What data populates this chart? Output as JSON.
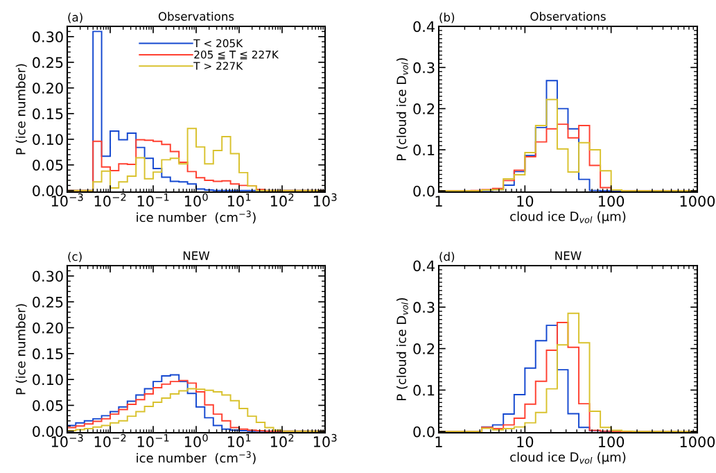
{
  "chart_data": [
    {
      "type": "histogram",
      "title": "Observations",
      "annotations": [
        "(a)"
      ],
      "xlabel": "ice number  (cm$^{−3}$)",
      "ylabel": "P (ice number)",
      "log": "x",
      "legend": "top",
      "bins": [
        0.001,
        0.00158,
        0.00251,
        0.00398,
        0.00631,
        0.01,
        0.0158,
        0.0251,
        0.0398,
        0.0631,
        0.1,
        0.158,
        0.251,
        0.398,
        0.631,
        1,
        1.58,
        2.51,
        3.98,
        6.31,
        10,
        15.8,
        25.1,
        39.8,
        63.1,
        100,
        158,
        251,
        398,
        631,
        1000
      ],
      "xlim": [
        0.001,
        1000
      ],
      "ylim": [
        -0.003,
        0.32
      ],
      "xticks": [
        {
          "value": 0.001,
          "label": "10$^{−3}$"
        },
        {
          "value": 0.01,
          "label": "10$^{−2}$"
        },
        {
          "value": 0.1,
          "label": "10$^{−1}$"
        },
        {
          "value": 1,
          "label": "10$^{0}$"
        },
        {
          "value": 10,
          "label": "10$^{1}$"
        },
        {
          "value": 100,
          "label": "10$^{2}$"
        },
        {
          "value": 1000,
          "label": "10$^{3}$"
        }
      ],
      "yticks": [
        {
          "value": 0,
          "label": "0.00"
        },
        0.05,
        {
          "value": 0.1,
          "label": "0.10"
        },
        0.15,
        {
          "value": 0.2,
          "label": "0.20"
        },
        0.25,
        {
          "value": 0.3,
          "label": "0.30"
        }
      ],
      "series": [
        {
          "name": "T < 205K",
          "color": "#1448d0",
          "values": [
            0,
            0,
            0,
            0.31,
            0.067,
            0.116,
            0.099,
            0.112,
            0.084,
            0.063,
            0.043,
            0.026,
            0.018,
            0.017,
            0.013,
            0.003,
            0.001,
            0,
            0,
            0,
            0,
            0,
            0,
            0,
            0,
            0,
            0,
            0,
            0,
            0
          ]
        },
        {
          "name": "205 ≦ T ≦ 227K",
          "color": "#ff4030",
          "values": [
            0,
            0,
            0,
            0.096,
            0.046,
            0.039,
            0.052,
            0.051,
            0.099,
            0.098,
            0.096,
            0.09,
            0.076,
            0.055,
            0.037,
            0.025,
            0.02,
            0.018,
            0.019,
            0.013,
            0.01,
            0.009,
            0.002,
            0,
            0,
            0,
            0,
            0,
            0,
            0
          ]
        },
        {
          "name": "T > 227K",
          "color": "#d9c22e",
          "values": [
            0,
            0,
            0,
            0.017,
            0.038,
            0.005,
            0.017,
            0.028,
            0.064,
            0.023,
            0.036,
            0.06,
            0.063,
            0.052,
            0.121,
            0.085,
            0.052,
            0.078,
            0.105,
            0.072,
            0.035,
            0.009,
            0,
            0,
            0,
            0,
            0,
            0,
            0,
            0
          ]
        }
      ]
    },
    {
      "type": "histogram",
      "title": "Observations",
      "annotations": [
        "(b)"
      ],
      "xlabel": "cloud ice D$_{vol}$ (μm)",
      "ylabel": "P (cloud ice D$_{vol}$)",
      "log": "x",
      "bins": [
        1,
        1.33,
        1.78,
        2.37,
        3.16,
        4.22,
        5.62,
        7.5,
        10,
        13.3,
        17.8,
        23.7,
        31.6,
        42.2,
        56.2,
        75,
        100,
        133,
        178,
        237,
        316,
        422,
        562,
        750,
        1000
      ],
      "xlim": [
        1,
        1000
      ],
      "ylim": [
        -0.003,
        0.4
      ],
      "xticks": [
        1,
        10,
        100,
        1000
      ],
      "yticks": [
        {
          "value": 0,
          "label": "0.0"
        },
        0.1,
        0.2,
        0.3,
        0.4
      ],
      "series": [
        {
          "color": "#1448d0",
          "values": [
            0,
            0,
            0,
            0,
            0.001,
            0.003,
            0.014,
            0.047,
            0.086,
            0.154,
            0.268,
            0.2,
            0.151,
            0.028,
            0.001,
            0,
            0,
            0,
            0,
            0,
            0,
            0,
            0,
            0
          ]
        },
        {
          "color": "#ff4030",
          "values": [
            0,
            0,
            0,
            0.001,
            0.003,
            0.006,
            0.025,
            0.05,
            0.083,
            0.119,
            0.151,
            0.162,
            0.129,
            0.159,
            0.062,
            0.008,
            0.002,
            0,
            0,
            0,
            0,
            0,
            0,
            0
          ]
        },
        {
          "color": "#d9c22e",
          "values": [
            0,
            0,
            0,
            0,
            0.002,
            0.003,
            0.029,
            0.039,
            0.093,
            0.159,
            0.222,
            0.102,
            0.046,
            0.117,
            0.1,
            0.049,
            0.002,
            0,
            0,
            0,
            0,
            0,
            0,
            0
          ]
        }
      ]
    },
    {
      "type": "histogram",
      "title": "NEW",
      "annotations": [
        "(c)"
      ],
      "xlabel": "ice number  (cm$^{−3}$)",
      "ylabel": "P (ice number)",
      "log": "x",
      "bins": [
        0.001,
        0.00158,
        0.00251,
        0.00398,
        0.00631,
        0.01,
        0.0158,
        0.0251,
        0.0398,
        0.0631,
        0.1,
        0.158,
        0.251,
        0.398,
        0.631,
        1,
        1.58,
        2.51,
        3.98,
        6.31,
        10,
        15.8,
        25.1,
        39.8,
        63.1,
        100,
        158,
        251,
        398,
        631,
        1000
      ],
      "xlim": [
        0.001,
        1000
      ],
      "ylim": [
        -0.003,
        0.32
      ],
      "xticks": [
        {
          "value": 0.001,
          "label": "10$^{−3}$"
        },
        {
          "value": 0.01,
          "label": "10$^{−2}$"
        },
        {
          "value": 0.1,
          "label": "10$^{−1}$"
        },
        {
          "value": 1,
          "label": "10$^{0}$"
        },
        {
          "value": 10,
          "label": "10$^{1}$"
        },
        {
          "value": 100,
          "label": "10$^{2}$"
        },
        {
          "value": 1000,
          "label": "10$^{3}$"
        }
      ],
      "yticks": [
        {
          "value": 0,
          "label": "0.00"
        },
        0.05,
        {
          "value": 0.1,
          "label": "0.10"
        },
        0.15,
        {
          "value": 0.2,
          "label": "0.20"
        },
        0.25,
        {
          "value": 0.3,
          "label": "0.30"
        }
      ],
      "series": [
        {
          "color": "#1448d0",
          "values": [
            0.011,
            0.016,
            0.02,
            0.024,
            0.03,
            0.038,
            0.047,
            0.058,
            0.07,
            0.082,
            0.096,
            0.107,
            0.109,
            0.096,
            0.073,
            0.047,
            0.026,
            0.011,
            0.004,
            0.002,
            0.001,
            0,
            0,
            0,
            0,
            0,
            0,
            0,
            0,
            0
          ]
        },
        {
          "color": "#ff4030",
          "values": [
            0.007,
            0.01,
            0.014,
            0.019,
            0.024,
            0.033,
            0.042,
            0.052,
            0.061,
            0.072,
            0.084,
            0.091,
            0.096,
            0.098,
            0.093,
            0.076,
            0.051,
            0.033,
            0.02,
            0.007,
            0.004,
            0.002,
            0.001,
            0,
            0,
            0,
            0,
            0,
            0,
            0
          ]
        },
        {
          "color": "#d9c22e",
          "values": [
            0.001,
            0.003,
            0.005,
            0.008,
            0.011,
            0.016,
            0.02,
            0.029,
            0.038,
            0.048,
            0.056,
            0.064,
            0.072,
            0.078,
            0.082,
            0.081,
            0.079,
            0.076,
            0.07,
            0.059,
            0.044,
            0.029,
            0.017,
            0.007,
            0.002,
            0,
            0,
            0,
            0,
            0
          ]
        }
      ]
    },
    {
      "type": "histogram",
      "title": "NEW",
      "annotations": [
        "(d)"
      ],
      "xlabel": "cloud ice D$_{vol}$ (μm)",
      "ylabel": "P (cloud ice D$_{vol}$)",
      "log": "x",
      "bins": [
        1,
        1.33,
        1.78,
        2.37,
        3.16,
        4.22,
        5.62,
        7.5,
        10,
        13.3,
        17.8,
        23.7,
        31.6,
        42.2,
        56.2,
        75,
        100,
        133,
        178,
        237,
        316,
        422,
        562,
        750,
        1000
      ],
      "xlim": [
        1,
        1000
      ],
      "ylim": [
        -0.003,
        0.4
      ],
      "xticks": [
        1,
        10,
        100,
        1000
      ],
      "yticks": [
        {
          "value": 0,
          "label": "0.0"
        },
        0.1,
        0.2,
        0.3,
        0.4
      ],
      "series": [
        {
          "color": "#1448d0",
          "values": [
            0,
            0,
            0,
            0,
            0.011,
            0.016,
            0.042,
            0.089,
            0.153,
            0.219,
            0.256,
            0.149,
            0.043,
            0.01,
            0.002,
            0,
            0,
            0,
            0,
            0,
            0,
            0,
            0,
            0
          ]
        },
        {
          "color": "#ff4030",
          "values": [
            0,
            0,
            0,
            0,
            0.01,
            0.007,
            0.016,
            0.032,
            0.066,
            0.121,
            0.196,
            0.263,
            0.203,
            0.067,
            0.003,
            0.001,
            0,
            0,
            0,
            0,
            0,
            0,
            0,
            0
          ]
        },
        {
          "color": "#d9c22e",
          "values": [
            0,
            0,
            0,
            0,
            0.008,
            0.004,
            0.007,
            0.011,
            0.021,
            0.046,
            0.103,
            0.209,
            0.285,
            0.214,
            0.049,
            0.01,
            0.003,
            0.001,
            0,
            0,
            0,
            0,
            0,
            0
          ]
        }
      ]
    }
  ]
}
